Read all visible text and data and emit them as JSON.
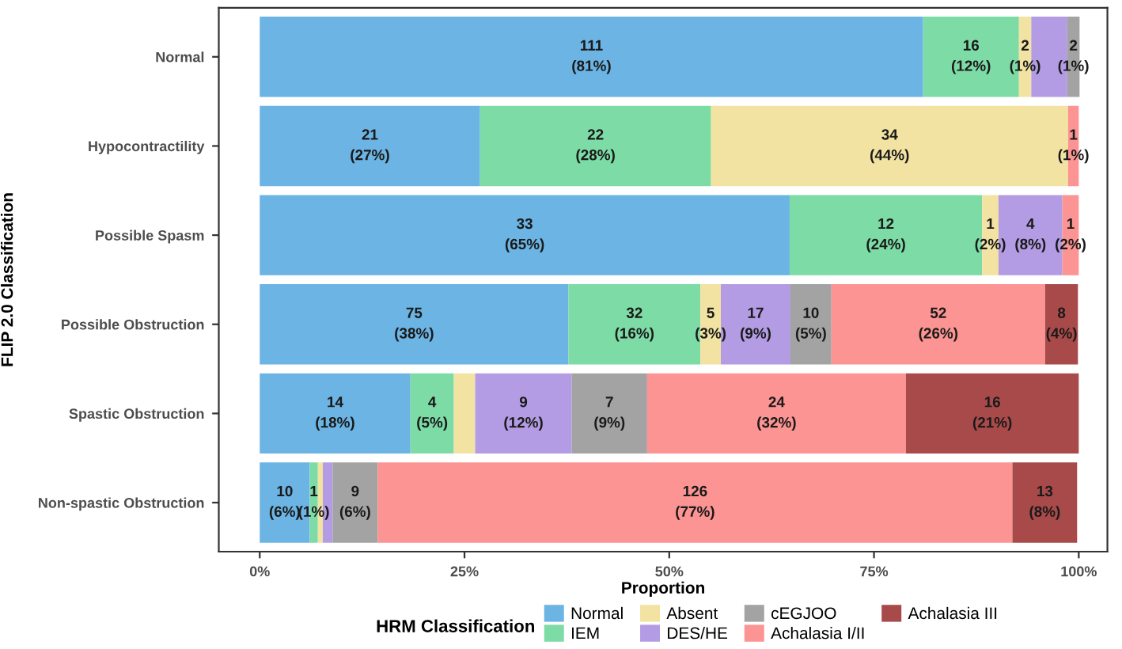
{
  "chart_data": {
    "type": "bar",
    "orientation": "horizontal",
    "stacked": true,
    "categories": [
      "Normal",
      "Hypocontractility",
      "Possible Spasm",
      "Possible Obstruction",
      "Spastic Obstruction",
      "Non-spastic Obstruction"
    ],
    "xlabel": "Proportion",
    "ylabel": "FLIP 2.0 Classification",
    "legend_title": "HRM Classification",
    "legend": "bottom",
    "xlim": [
      -0.05,
      1.035
    ],
    "xticks": [
      {
        "value": 0,
        "label": "0%"
      },
      {
        "value": 0.25,
        "label": "25%"
      },
      {
        "value": 0.5,
        "label": "50%"
      },
      {
        "value": 0.75,
        "label": "75%"
      },
      {
        "value": 1,
        "label": "100%"
      }
    ],
    "grid": false,
    "series": [
      {
        "name": "Normal",
        "color": "#6cb4e4",
        "values": [
          0.81,
          0.269,
          0.647,
          0.377,
          0.184,
          0.061
        ],
        "value_labels": [
          "111\n(81%)",
          "21\n(27%)",
          "33\n(65%)",
          "75\n(38%)",
          "14\n(18%)",
          "10\n(6%)"
        ]
      },
      {
        "name": "IEM",
        "color": "#7ddba6",
        "values": [
          0.117,
          0.282,
          0.235,
          0.161,
          0.053,
          0.01
        ],
        "value_labels": [
          "16\n(12%)",
          "22\n(28%)",
          "12\n(24%)",
          "32\n(16%)",
          "4\n(5%)",
          "1\n(1%)"
        ]
      },
      {
        "name": "Absent",
        "color": "#f2e3a2",
        "values": [
          0.015,
          0.436,
          0.02,
          0.025,
          0.026,
          0.006
        ],
        "value_labels": [
          "2\n(1%)",
          "34\n(44%)",
          "1\n(2%)",
          "5\n(3%)",
          null,
          null
        ]
      },
      {
        "name": "DES/HE",
        "color": "#b39ce3",
        "values": [
          0.044,
          0.0,
          0.078,
          0.085,
          0.118,
          0.012
        ],
        "value_labels": [
          null,
          null,
          "4\n(8%)",
          "17\n(9%)",
          "9\n(12%)",
          null
        ]
      },
      {
        "name": "cEGJOO",
        "color": "#a3a3a3",
        "values": [
          0.015,
          0.0,
          0.0,
          0.05,
          0.092,
          0.055
        ],
        "value_labels": [
          "2\n(1%)",
          null,
          null,
          "10\n(5%)",
          "7\n(9%)",
          "9\n(6%)"
        ]
      },
      {
        "name": "Achalasia I/II",
        "color": "#fb9492",
        "values": [
          0.0,
          0.013,
          0.02,
          0.261,
          0.316,
          0.775
        ],
        "value_labels": [
          null,
          "1\n(1%)",
          "1\n(2%)",
          "52\n(26%)",
          "24\n(32%)",
          "126\n(77%)"
        ]
      },
      {
        "name": "Achalasia III",
        "color": "#a94a4a",
        "values": [
          0.0,
          0.0,
          0.0,
          0.04,
          0.211,
          0.079
        ],
        "value_labels": [
          null,
          null,
          null,
          "8\n(4%)",
          "16\n(21%)",
          "13\n(8%)"
        ]
      }
    ]
  }
}
